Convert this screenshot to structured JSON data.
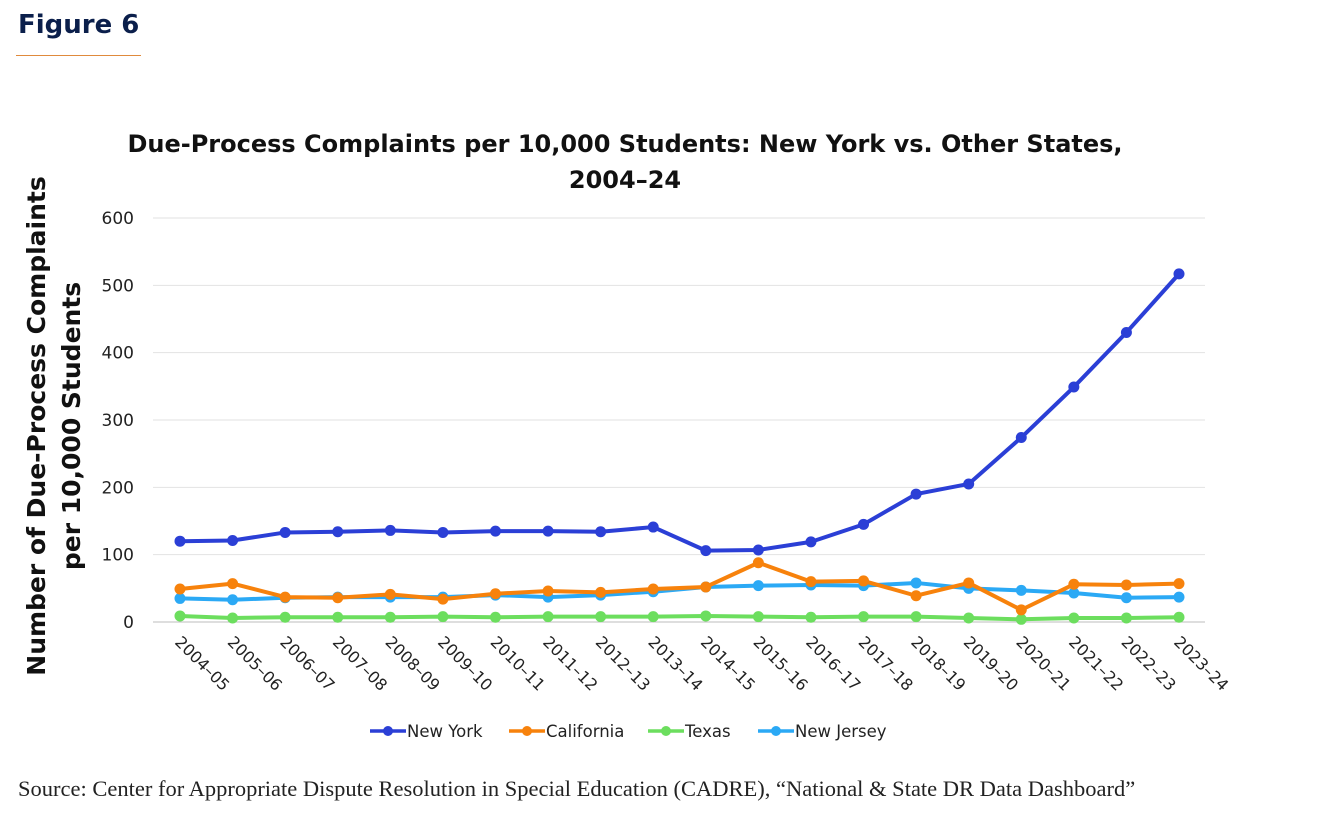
{
  "figure_label": "Figure 6",
  "source": "Source: Center for Appropriate Dispute Resolution in Special Education (CADRE), “National & State DR Data Dashboard”",
  "chart_data": {
    "type": "line",
    "title_lines": [
      "Due-Process Complaints per 10,000 Students: New York vs. Other States,",
      "2004–24"
    ],
    "ylabel_lines": [
      "Number of Due-Process Complaints",
      "per 10,000 Students"
    ],
    "xlabel": "",
    "ylim": [
      0,
      600
    ],
    "yticks": [
      0,
      100,
      200,
      300,
      400,
      500,
      600
    ],
    "grid": true,
    "legend_position": "bottom",
    "categories": [
      "2004–05",
      "2005–06",
      "2006–07",
      "2007–08",
      "2008–09",
      "2009–10",
      "2010–11",
      "2011–12",
      "2012–13",
      "2013–14",
      "2014–15",
      "2015–16",
      "2016–17",
      "2017–18",
      "2018–19",
      "2019–20",
      "2020–21",
      "2021–22",
      "2022–23",
      "2023–24"
    ],
    "series": [
      {
        "name": "New York",
        "color": "#2b3fd6",
        "values": [
          120,
          121,
          133,
          134,
          136,
          133,
          135,
          135,
          134,
          141,
          106,
          107,
          119,
          145,
          190,
          205,
          274,
          349,
          430,
          517
        ]
      },
      {
        "name": "California",
        "color": "#f7820c",
        "values": [
          49,
          57,
          37,
          36,
          41,
          34,
          42,
          46,
          44,
          49,
          52,
          88,
          60,
          61,
          39,
          58,
          18,
          56,
          55,
          57
        ]
      },
      {
        "name": "Texas",
        "color": "#6cde5e",
        "values": [
          9,
          6,
          7,
          7,
          7,
          8,
          7,
          8,
          8,
          8,
          9,
          8,
          7,
          8,
          8,
          6,
          4,
          6,
          6,
          7
        ]
      },
      {
        "name": "New Jersey",
        "color": "#2ba9f5",
        "values": [
          35,
          33,
          36,
          37,
          37,
          37,
          40,
          37,
          40,
          45,
          52,
          54,
          55,
          54,
          58,
          50,
          47,
          43,
          36,
          37
        ]
      }
    ]
  }
}
